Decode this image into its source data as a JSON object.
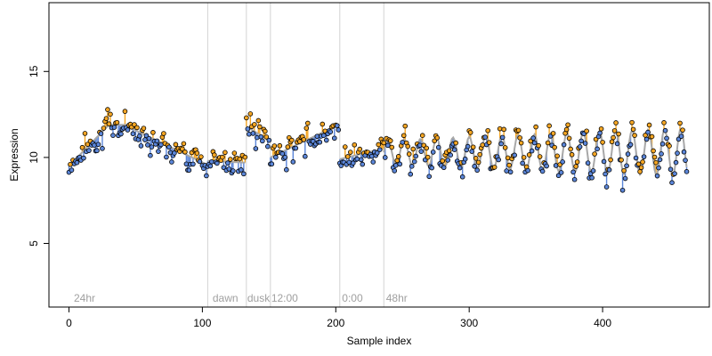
{
  "chart_data": {
    "type": "scatter",
    "title": "",
    "xlabel": "Sample index",
    "ylabel": "Expression",
    "xlim": [
      -15,
      480
    ],
    "ylim": [
      1.3,
      19.0
    ],
    "x_ticks": [
      0,
      100,
      200,
      300,
      400
    ],
    "y_ticks": [
      5,
      10,
      15
    ],
    "grid": false,
    "legend": "none",
    "phase_boundaries": [
      104,
      133,
      151,
      203,
      236
    ],
    "phase_labels": [
      {
        "x": 3,
        "label": "24hr"
      },
      {
        "x": 107,
        "label": "dawn"
      },
      {
        "x": 133,
        "label": "dusk"
      },
      {
        "x": 151,
        "label": "12:00"
      },
      {
        "x": 204,
        "label": "0:00"
      },
      {
        "x": 237,
        "label": "48hr"
      }
    ],
    "colors": {
      "above_fit": "#f5a623",
      "below_fit": "#5b86d9",
      "fit_line": "#a8a8a8",
      "point_edge": "#000000",
      "phase_line": "#d3d3d3",
      "phase_label": "#a0a0a0"
    },
    "n_points": 464,
    "fit_segments": [
      {
        "x0": 0,
        "x1": 43,
        "kind": "triangle",
        "start": 9.5,
        "peak": 11.9,
        "end": 11.9,
        "peak_at": 30
      },
      {
        "x0": 44,
        "x1": 103,
        "kind": "linear",
        "start": 11.8,
        "end": 9.6
      },
      {
        "x0": 104,
        "x1": 132,
        "kind": "linear",
        "start": 9.8,
        "end": 9.7
      },
      {
        "x0": 133,
        "x1": 150,
        "kind": "linear",
        "start": 11.8,
        "end": 11.0
      },
      {
        "x0": 151,
        "x1": 202,
        "kind": "linear",
        "start": 10.0,
        "end": 11.9
      },
      {
        "x0": 203,
        "x1": 235,
        "kind": "linear",
        "start": 9.9,
        "end": 10.5
      },
      {
        "x0": 236,
        "x1": 463,
        "kind": "oscillation",
        "base": 10.3,
        "amp_start": 0.7,
        "amp_end": 1.4,
        "period": 12.2
      }
    ],
    "noise_sd": 0.45
  }
}
